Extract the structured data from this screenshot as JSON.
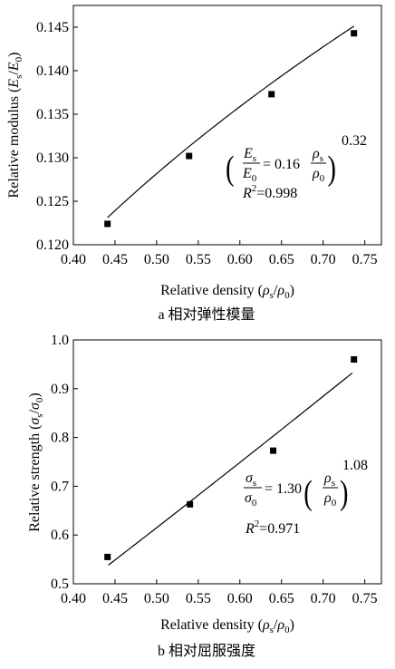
{
  "chart_data": [
    {
      "type": "scatter",
      "panel_caption": "a  相对弹性模量",
      "xlabel": "Relative density (ρs/ρ0)",
      "ylabel": "Relative modulus (Es/E0)",
      "xlim": [
        0.4,
        0.77
      ],
      "ylim": [
        0.12,
        0.1475
      ],
      "xticks": [
        "0.40",
        "0.45",
        "0.50",
        "0.55",
        "0.60",
        "0.65",
        "0.70",
        "0.75"
      ],
      "yticks": [
        "0.120",
        "0.125",
        "0.130",
        "0.135",
        "0.140",
        "0.145"
      ],
      "points": [
        {
          "x": 0.441,
          "y": 0.1224
        },
        {
          "x": 0.539,
          "y": 0.1302
        },
        {
          "x": 0.638,
          "y": 0.1373
        },
        {
          "x": 0.737,
          "y": 0.1443
        }
      ],
      "fit": {
        "coef": 0.16,
        "exp": 0.32,
        "x_range": [
          0.441,
          0.737
        ]
      },
      "equation": {
        "lhs_num": "E",
        "lhs_num_sub": "s",
        "lhs_den": "E",
        "lhs_den_sub": "0",
        "coef_text": "= 0.16",
        "rho_num_sub": "s",
        "rho_den_sub": "0",
        "exponent": "0.32",
        "r2_label": "R",
        "r2_value": "=0.998"
      },
      "grid": false
    },
    {
      "type": "scatter",
      "panel_caption": "b  相对屈服强度",
      "xlabel": "Relative density (ρs/ρ0)",
      "ylabel": "Relative strength (σs/σ0)",
      "xlim": [
        0.4,
        0.77
      ],
      "ylim": [
        0.5,
        1.0
      ],
      "xticks": [
        "0.40",
        "0.45",
        "0.50",
        "0.55",
        "0.60",
        "0.65",
        "0.70",
        "0.75"
      ],
      "yticks": [
        "0.5",
        "0.6",
        "0.7",
        "0.8",
        "0.9",
        "1.0"
      ],
      "points": [
        {
          "x": 0.441,
          "y": 0.555
        },
        {
          "x": 0.54,
          "y": 0.663
        },
        {
          "x": 0.64,
          "y": 0.773
        },
        {
          "x": 0.737,
          "y": 0.96
        }
      ],
      "fit": {
        "coef": 1.3,
        "exp": 1.08,
        "x_range": [
          0.442,
          0.735
        ]
      },
      "equation": {
        "lhs_num": "σ",
        "lhs_num_sub": "s",
        "lhs_den": "σ",
        "lhs_den_sub": "0",
        "coef_text": "= 1.30",
        "rho_num_sub": "s",
        "rho_den_sub": "0",
        "exponent": "1.08",
        "r2_label": "R",
        "r2_value": "=0.971"
      },
      "grid": false
    }
  ]
}
